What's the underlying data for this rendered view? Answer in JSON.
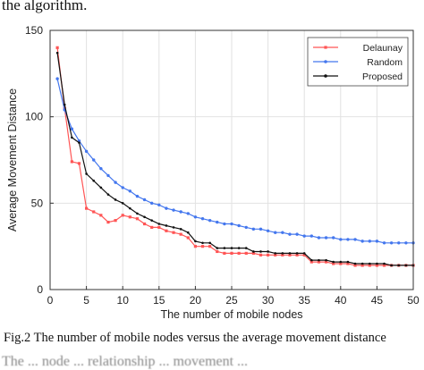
{
  "header_text": "the algorithm.",
  "caption": "Fig.2 The number of mobile nodes versus the average movement distance",
  "footer_text": "The ... node ... relationship ... movement ...",
  "chart_data": {
    "type": "line",
    "title": "",
    "xlabel": "The number of mobile nodes",
    "ylabel": "Average Movement Distance",
    "xlim": [
      0,
      50
    ],
    "ylim": [
      0,
      150
    ],
    "xticks": [
      0,
      5,
      10,
      15,
      20,
      25,
      30,
      35,
      40,
      45,
      50
    ],
    "yticks": [
      0,
      50,
      100,
      150
    ],
    "grid": true,
    "legend_position": "top-right",
    "x": [
      1,
      2,
      3,
      4,
      5,
      6,
      7,
      8,
      9,
      10,
      11,
      12,
      13,
      14,
      15,
      16,
      17,
      18,
      19,
      20,
      21,
      22,
      23,
      24,
      25,
      26,
      27,
      28,
      29,
      30,
      31,
      32,
      33,
      34,
      35,
      36,
      37,
      38,
      39,
      40,
      41,
      42,
      43,
      44,
      45,
      46,
      47,
      48,
      49,
      50
    ],
    "series": [
      {
        "name": "Delaunay",
        "color": "#ff5555",
        "marker": "square",
        "values": [
          140,
          105,
          74,
          73,
          47,
          45,
          43,
          39,
          40,
          43,
          42,
          41,
          38,
          36,
          36,
          34,
          33,
          32,
          30,
          25,
          25,
          25,
          22,
          21,
          21,
          21,
          21,
          21,
          20,
          20,
          20,
          20,
          20,
          20,
          20,
          16,
          16,
          16,
          15,
          15,
          15,
          14,
          14,
          14,
          14,
          14,
          14,
          14,
          14,
          14
        ]
      },
      {
        "name": "Random",
        "color": "#4477ee",
        "marker": "circle",
        "values": [
          122,
          104,
          93,
          86,
          80,
          75,
          70,
          66,
          62,
          59,
          57,
          54,
          52,
          50,
          49,
          47,
          46,
          45,
          44,
          42,
          41,
          40,
          39,
          38,
          38,
          37,
          36,
          35,
          35,
          34,
          33,
          33,
          32,
          32,
          31,
          31,
          30,
          30,
          30,
          29,
          29,
          29,
          28,
          28,
          28,
          27,
          27,
          27,
          27,
          27
        ]
      },
      {
        "name": "Proposed",
        "color": "#111111",
        "marker": "dot",
        "values": [
          137,
          107,
          88,
          85,
          67,
          63,
          59,
          55,
          52,
          50,
          47,
          44,
          42,
          40,
          38,
          37,
          36,
          35,
          33,
          28,
          27,
          27,
          24,
          24,
          24,
          24,
          24,
          22,
          22,
          22,
          21,
          21,
          21,
          21,
          21,
          17,
          17,
          17,
          16,
          16,
          16,
          15,
          15,
          15,
          15,
          15,
          14,
          14,
          14,
          14
        ]
      }
    ]
  }
}
